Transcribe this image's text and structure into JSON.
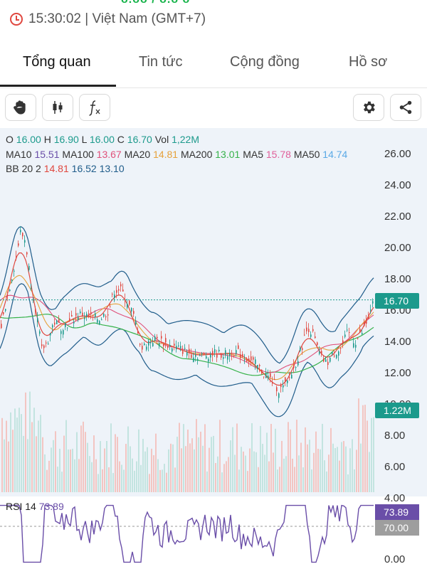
{
  "header": {
    "clock_text": "15:30:02 | Việt Nam (GMT+7)",
    "partial_top_text": "ᴗ.ᴗᴗ / ᴗ.ᴗ ᴗ"
  },
  "tabs": [
    {
      "label": "Tổng quan",
      "active": true
    },
    {
      "label": "Tin tức",
      "active": false
    },
    {
      "label": "Cộng đồng",
      "active": false
    },
    {
      "label": "Hồ sơ",
      "active": false
    }
  ],
  "toolbar": {
    "icons": [
      "hand-icon",
      "candlestick-icon",
      "function-icon",
      "gear-icon",
      "share-icon"
    ],
    "fx_label": "fx"
  },
  "ohlc": {
    "o_label": "O",
    "o": "16.00",
    "h_label": "H",
    "h": "16.90",
    "l_label": "L",
    "l": "16.00",
    "c_label": "C",
    "c": "16.70",
    "vol_label": "Vol",
    "vol": "1,22M"
  },
  "ma": [
    {
      "label": "MA10",
      "value": "15.51",
      "color": "#6a4ea8"
    },
    {
      "label": "MA100",
      "value": "13.67",
      "color": "#e0507a"
    },
    {
      "label": "MA20",
      "value": "14.81",
      "color": "#e6a13b"
    },
    {
      "label": "MA200",
      "value": "13.01",
      "color": "#36b24a"
    },
    {
      "label": "MA5",
      "value": "15.78",
      "color": "#e0609a"
    },
    {
      "label": "MA50",
      "value": "14.74",
      "color": "#5aa9e6"
    }
  ],
  "bb": {
    "label": "BB 20 2",
    "mid": "14.81",
    "upper": "16.52",
    "lower": "13.10",
    "mid_color": "#e0473f",
    "upper_color": "#1f5c8a",
    "lower_color": "#1f5c8a"
  },
  "price_axis": [
    "26.00",
    "24.00",
    "22.00",
    "20.00",
    "18.00",
    "16.00",
    "14.00",
    "12.00",
    "10.00",
    "8.00",
    "6.00",
    "4.00"
  ],
  "price_badge": "16.70",
  "volume_badge": "1.22M",
  "rsi": {
    "label": "RSI 14",
    "value": "73.89",
    "badge_value": "73.89",
    "level_badge": "70.00",
    "axis_zero": "0.00",
    "color": "#6a4ea8"
  }
}
